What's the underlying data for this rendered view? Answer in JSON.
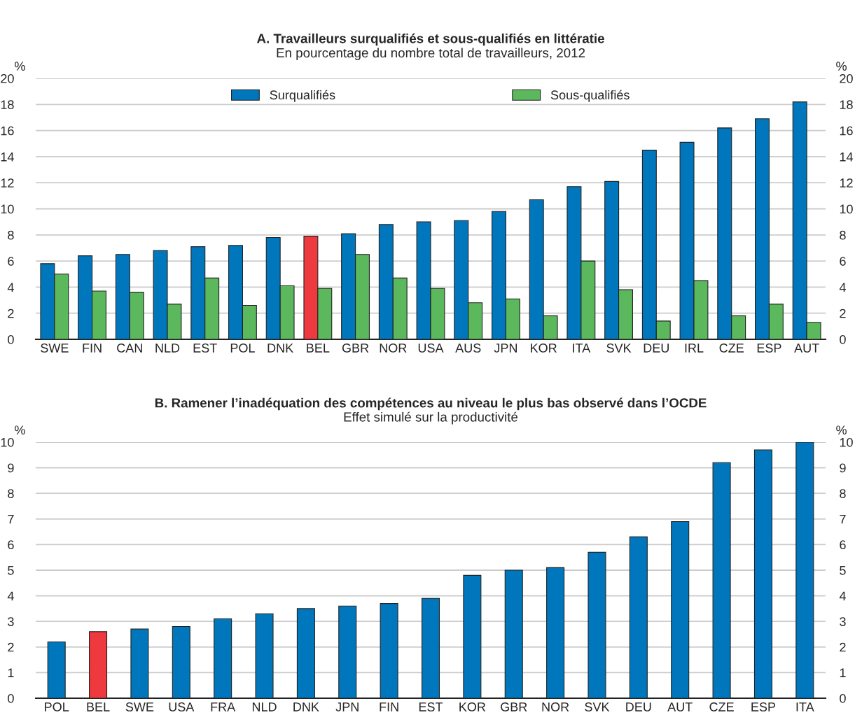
{
  "chart_data": [
    {
      "type": "bar",
      "title": "A. Travailleurs surqualifiés et sous-qualifiés en littératie",
      "subtitle": "En pourcentage du nombre total de travailleurs, 2012",
      "ylabel": "%",
      "y2label": "%",
      "categories": [
        "SWE",
        "FIN",
        "CAN",
        "NLD",
        "EST",
        "POL",
        "DNK",
        "BEL",
        "GBR",
        "NOR",
        "USA",
        "AUS",
        "JPN",
        "KOR",
        "ITA",
        "SVK",
        "DEU",
        "IRL",
        "CZE",
        "ESP",
        "AUT"
      ],
      "series": [
        {
          "name": "Surqualifiés",
          "color": "#0077bd",
          "colors": [
            "#0077bd",
            "#0077bd",
            "#0077bd",
            "#0077bd",
            "#0077bd",
            "#0077bd",
            "#0077bd",
            "#ee3a3f",
            "#0077bd",
            "#0077bd",
            "#0077bd",
            "#0077bd",
            "#0077bd",
            "#0077bd",
            "#0077bd",
            "#0077bd",
            "#0077bd",
            "#0077bd",
            "#0077bd",
            "#0077bd",
            "#0077bd"
          ],
          "values": [
            5.8,
            6.4,
            6.5,
            6.8,
            7.1,
            7.2,
            7.8,
            7.9,
            8.1,
            8.8,
            9.0,
            9.1,
            9.8,
            10.7,
            11.7,
            12.1,
            14.5,
            15.1,
            16.2,
            16.9,
            18.2
          ]
        },
        {
          "name": "Sous-qualifiés",
          "color": "#5cb85c",
          "values": [
            5.0,
            3.7,
            3.6,
            2.7,
            4.7,
            2.6,
            4.1,
            3.9,
            6.5,
            4.7,
            3.9,
            2.8,
            3.1,
            1.8,
            6.0,
            3.8,
            1.4,
            4.5,
            1.8,
            2.7,
            1.3
          ]
        }
      ],
      "ylim": [
        0,
        20
      ],
      "yticks": [
        0,
        2,
        4,
        6,
        8,
        10,
        12,
        14,
        16,
        18,
        20
      ],
      "y2lim": [
        0,
        20
      ],
      "y2ticks": [
        0,
        2,
        4,
        6,
        8,
        10,
        12,
        14,
        16,
        18,
        20
      ],
      "grid": "y",
      "legend": "top"
    },
    {
      "type": "bar",
      "title": "B. Ramener l’inadéquation des compétences au niveau le plus bas observé dans l’OCDE",
      "subtitle": "Effet simulé sur la productivité",
      "ylabel": "%",
      "y2label": "%",
      "categories": [
        "POL",
        "BEL",
        "SWE",
        "USA",
        "FRA",
        "NLD",
        "DNK",
        "JPN",
        "FIN",
        "EST",
        "KOR",
        "GBR",
        "NOR",
        "SVK",
        "DEU",
        "AUT",
        "CZE",
        "ESP",
        "ITA"
      ],
      "colors": [
        "#0077bd",
        "#ee3a3f",
        "#0077bd",
        "#0077bd",
        "#0077bd",
        "#0077bd",
        "#0077bd",
        "#0077bd",
        "#0077bd",
        "#0077bd",
        "#0077bd",
        "#0077bd",
        "#0077bd",
        "#0077bd",
        "#0077bd",
        "#0077bd",
        "#0077bd",
        "#0077bd",
        "#0077bd"
      ],
      "values": [
        2.2,
        2.6,
        2.7,
        2.8,
        3.1,
        3.3,
        3.5,
        3.6,
        3.7,
        3.9,
        4.8,
        5.0,
        5.1,
        5.7,
        6.3,
        6.9,
        9.2,
        9.7,
        10.0
      ],
      "ylim": [
        0,
        10
      ],
      "yticks": [
        0,
        1,
        2,
        3,
        4,
        5,
        6,
        7,
        8,
        9,
        10
      ],
      "y2lim": [
        0,
        10
      ],
      "y2ticks": [
        0,
        1,
        2,
        3,
        4,
        5,
        6,
        7,
        8,
        9,
        10
      ],
      "grid": "y"
    }
  ]
}
